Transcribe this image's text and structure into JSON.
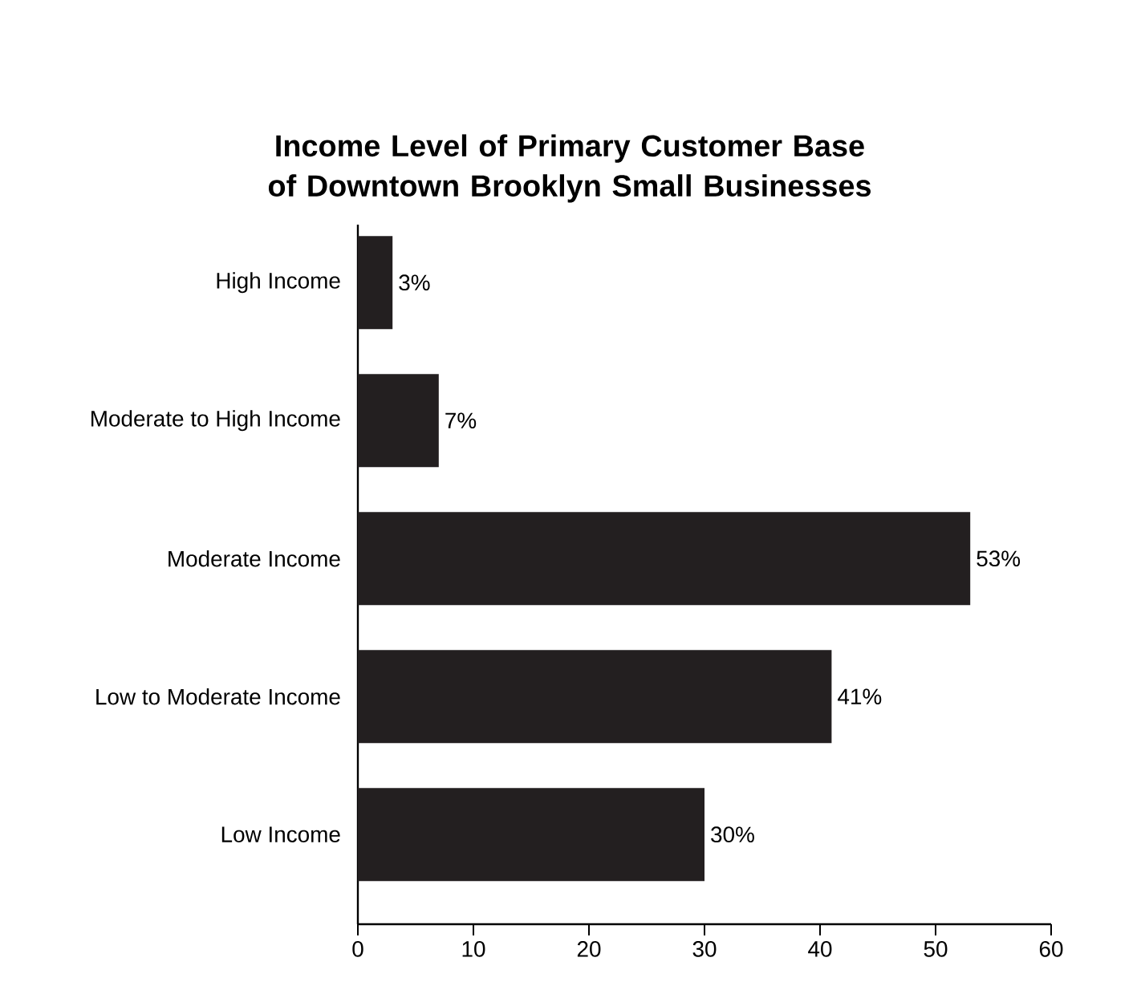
{
  "chart_data": {
    "type": "bar",
    "orientation": "horizontal",
    "title": "Income Level of Primary Customer Base of Downtown Brooklyn Small Businesses",
    "categories": [
      "High Income",
      "Moderate to High Income",
      "Moderate Income",
      "Low to Moderate Income",
      "Low Income"
    ],
    "values": [
      3,
      7,
      53,
      41,
      30
    ],
    "value_labels": [
      "3%",
      "7%",
      "53%",
      "41%",
      "30%"
    ],
    "color": "#231f20",
    "xlim": [
      0,
      60
    ],
    "xticks": [
      0,
      10,
      20,
      30,
      40,
      50,
      60
    ],
    "grid": false
  }
}
